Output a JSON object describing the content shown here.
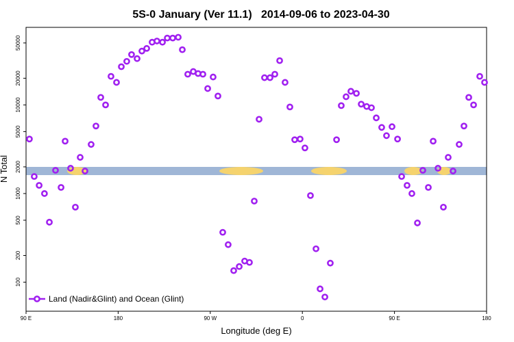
{
  "chart_data": {
    "type": "scatter",
    "title": "5S-0 January (Ver 11.1)   2014-09-06 to 2023-04-30",
    "x_label": "Longitude (deg E)",
    "y_label": "N Total",
    "xlim": [
      90,
      540
    ],
    "xticks": [
      {
        "value": 90,
        "label": "90 E"
      },
      180,
      {
        "value": 270,
        "label": "90 W"
      },
      {
        "value": 360,
        "label": "0"
      },
      {
        "value": 450,
        "label": "90 E"
      },
      {
        "value": 540,
        "label": "180"
      }
    ],
    "ylim": [
      47,
      75000
    ],
    "ylog": true,
    "yticks": [
      100,
      200,
      500,
      1000,
      2000,
      5000,
      10000,
      20000,
      50000
    ],
    "legend": "bottom-left",
    "series": [
      {
        "name": "Land (Nadir&Glint) and Ocean (Glint)",
        "color": "#a020f0",
        "x": [
          93.3,
          98,
          102.8,
          108,
          112.8,
          118.8,
          124.2,
          128.2,
          133.5,
          138.2,
          142.9,
          147.6,
          153.6,
          158.3,
          163,
          167.7,
          173,
          178.4,
          183.1,
          188.4,
          193.1,
          198.5,
          203.2,
          207.9,
          213.2,
          217.9,
          223.3,
          228,
          233.3,
          238.7,
          242.7,
          248,
          253.4,
          258.1,
          262.8,
          267.5,
          272.8,
          277.5,
          282.2,
          287.5,
          292.9,
          298.3,
          303.6,
          308.3,
          313,
          317.7,
          323,
          328.4,
          333.1,
          337.8,
          343.1,
          347.8,
          352.5,
          357.8,
          362.5,
          367.9,
          373.3,
          377.3,
          382,
          387.3,
          393.4,
          398,
          402.7,
          407.4,
          412.8,
          417.5,
          422.8,
          427.5,
          432.2,
          437.5,
          442.2,
          447.6,
          453,
          457,
          462.3,
          467,
          472.4,
          477.7,
          483.1,
          487.8,
          492.5,
          497.8,
          502.5,
          507.2,
          513.2,
          517.9,
          522.6,
          527.3,
          533.3,
          538
        ],
        "values": [
          4120,
          1557,
          1236,
          1000,
          475,
          1828,
          1172,
          3900,
          1930,
          702,
          2560,
          1794,
          3580,
          5780,
          12160,
          10000,
          21000,
          17950,
          27000,
          31000,
          37000,
          33300,
          40500,
          43400,
          51000,
          52600,
          51000,
          56800,
          56800,
          58000,
          42000,
          22200,
          23800,
          22600,
          22200,
          15300,
          20650,
          12600,
          365,
          265,
          135,
          150,
          173,
          167,
          822,
          6890,
          20300,
          20300,
          22200,
          31600,
          17950,
          9480,
          4050,
          4120,
          3270,
          949,
          238,
          84,
          68,
          164,
          4050,
          9820,
          12360,
          14250,
          13500,
          10200,
          9600,
          9300,
          7140,
          5570,
          4500,
          5680,
          4120,
          1557,
          1236,
          1000,
          466,
          1828,
          1172,
          3900,
          1930,
          702,
          2560,
          1794,
          3580,
          5780,
          12160,
          10000,
          21000,
          17950
        ]
      }
    ]
  }
}
